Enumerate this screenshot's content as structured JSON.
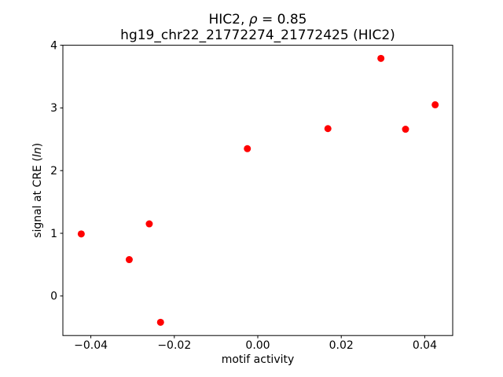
{
  "chart_data": {
    "type": "scatter",
    "title": "HIC2, ρ = 0.85",
    "title_parts": [
      {
        "text": "HIC2, ",
        "italic": false
      },
      {
        "text": "ρ",
        "italic": true
      },
      {
        "text": " = 0.85",
        "italic": false
      }
    ],
    "subtitle": "hg19_chr22_21772274_21772425 (HIC2)",
    "xlabel": "motif activity",
    "ylabel": "signal at CRE (ln)",
    "ylabel_parts": [
      {
        "text": "signal at CRE (",
        "italic": false
      },
      {
        "text": "ln",
        "italic": true
      },
      {
        "text": ")",
        "italic": false
      }
    ],
    "points": [
      [
        -0.0423,
        0.99
      ],
      [
        -0.0308,
        0.58
      ],
      [
        -0.026,
        1.15
      ],
      [
        -0.0233,
        -0.42
      ],
      [
        -0.0025,
        2.35
      ],
      [
        0.0168,
        2.67
      ],
      [
        0.0295,
        3.79
      ],
      [
        0.0354,
        2.66
      ],
      [
        0.0425,
        3.05
      ]
    ],
    "xlim": [
      -0.0467,
      0.0467
    ],
    "ylim": [
      -0.631,
      4.0
    ],
    "xticks": {
      "values": [
        -0.04,
        -0.02,
        0.0,
        0.02,
        0.04
      ],
      "labels": [
        "−0.04",
        "−0.02",
        "0.00",
        "0.02",
        "0.04"
      ]
    },
    "yticks": {
      "values": [
        0,
        1,
        2,
        3,
        4
      ],
      "labels": [
        "0",
        "1",
        "2",
        "3",
        "4"
      ]
    },
    "grid": false,
    "legend": null,
    "marker": {
      "shape": "circle",
      "radius_px": 4.5
    },
    "colors": {
      "background": "#ffffff",
      "spine": "#000000",
      "text": "#000000",
      "point": "#ff0000"
    }
  }
}
